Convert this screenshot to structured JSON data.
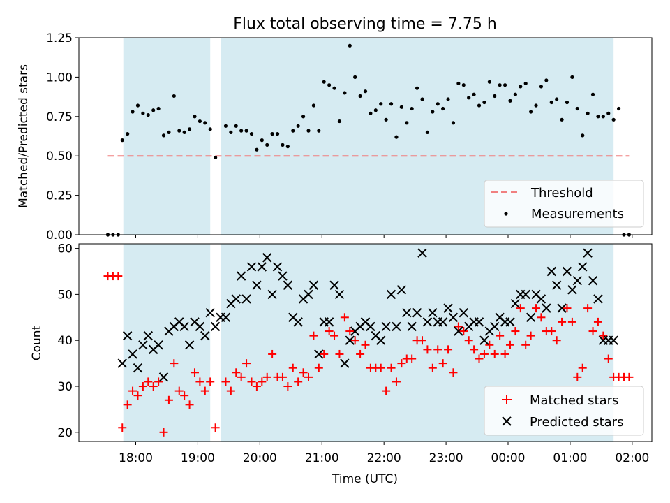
{
  "chart_data": [
    {
      "type": "scatter",
      "title": "Flux total observing time = 7.75 h",
      "xlabel": "",
      "ylabel": "Matched/Predicted stars",
      "ylim": [
        0,
        1.25
      ],
      "yticks": [
        "0.00",
        "0.25",
        "0.50",
        "0.75",
        "1.00",
        "1.25"
      ],
      "threshold": 0.5,
      "shaded_intervals": [
        [
          "17:48",
          "19:12"
        ],
        [
          "19:22",
          "01:42"
        ]
      ],
      "legend": {
        "placement": "lower-right",
        "entries": [
          "Threshold",
          "Measurements"
        ]
      },
      "series": [
        {
          "name": "Measurements",
          "x": [
            "17:33",
            "17:38",
            "17:43",
            "17:47",
            "17:52",
            "17:57",
            "18:02",
            "18:07",
            "18:12",
            "18:17",
            "18:22",
            "18:27",
            "18:32",
            "18:37",
            "18:42",
            "18:47",
            "18:52",
            "18:57",
            "19:02",
            "19:07",
            "19:12",
            "19:17",
            "19:27",
            "19:32",
            "19:37",
            "19:42",
            "19:47",
            "19:52",
            "19:57",
            "20:02",
            "20:07",
            "20:12",
            "20:17",
            "20:22",
            "20:27",
            "20:32",
            "20:37",
            "20:42",
            "20:47",
            "20:52",
            "20:57",
            "21:02",
            "21:07",
            "21:12",
            "21:17",
            "21:22",
            "21:27",
            "21:32",
            "21:37",
            "21:42",
            "21:47",
            "21:52",
            "21:57",
            "22:02",
            "22:07",
            "22:12",
            "22:17",
            "22:22",
            "22:27",
            "22:32",
            "22:37",
            "22:42",
            "22:47",
            "22:52",
            "22:57",
            "23:02",
            "23:07",
            "23:12",
            "23:17",
            "23:22",
            "23:27",
            "23:32",
            "23:37",
            "23:42",
            "23:47",
            "23:52",
            "23:57",
            "00:02",
            "00:07",
            "00:12",
            "00:17",
            "00:22",
            "00:27",
            "00:32",
            "00:37",
            "00:42",
            "00:47",
            "00:52",
            "00:57",
            "01:02",
            "01:07",
            "01:12",
            "01:17",
            "01:22",
            "01:27",
            "01:32",
            "01:37",
            "01:42",
            "01:47",
            "01:52",
            "01:57"
          ],
          "y": [
            0,
            0,
            0,
            0.6,
            0.64,
            0.78,
            0.82,
            0.77,
            0.76,
            0.79,
            0.8,
            0.63,
            0.65,
            0.88,
            0.66,
            0.65,
            0.67,
            0.75,
            0.72,
            0.71,
            0.67,
            0.49,
            0.69,
            0.65,
            0.69,
            0.66,
            0.66,
            0.64,
            0.54,
            0.6,
            0.57,
            0.64,
            0.64,
            0.57,
            0.56,
            0.66,
            0.69,
            0.75,
            0.66,
            0.82,
            0.66,
            0.97,
            0.95,
            0.93,
            0.72,
            0.9,
            1.2,
            1.0,
            0.88,
            0.91,
            0.77,
            0.79,
            0.83,
            0.73,
            0.83,
            0.62,
            0.81,
            0.71,
            0.8,
            0.93,
            0.86,
            0.65,
            0.78,
            0.83,
            0.8,
            0.86,
            0.71,
            0.96,
            0.95,
            0.87,
            0.89,
            0.82,
            0.84,
            0.97,
            0.88,
            0.95,
            0.95,
            0.85,
            0.89,
            0.94,
            0.96,
            0.78,
            0.82,
            0.94,
            0.98,
            0.84,
            0.86,
            0.73,
            0.84,
            1.0,
            0.8,
            0.63,
            0.77,
            0.89,
            0.75,
            0.75,
            0.77,
            0.73,
            0.8,
            0,
            0
          ]
        }
      ]
    },
    {
      "type": "scatter",
      "title": "",
      "xlabel": "Time (UTC)",
      "ylabel": "Count",
      "ylim": [
        18,
        61
      ],
      "yticks": [
        "20",
        "30",
        "40",
        "50",
        "60"
      ],
      "xticks": [
        "18:00",
        "19:00",
        "20:00",
        "21:00",
        "22:00",
        "23:00",
        "00:00",
        "01:00",
        "02:00"
      ],
      "shaded_intervals": [
        [
          "17:48",
          "19:12"
        ],
        [
          "19:22",
          "01:42"
        ]
      ],
      "legend": {
        "placement": "lower-right",
        "entries": [
          "Matched stars",
          "Predicted stars"
        ]
      },
      "series": [
        {
          "name": "Matched stars",
          "x": [
            "17:33",
            "17:38",
            "17:43",
            "17:47",
            "17:52",
            "17:57",
            "18:02",
            "18:07",
            "18:12",
            "18:17",
            "18:22",
            "18:27",
            "18:32",
            "18:37",
            "18:42",
            "18:47",
            "18:52",
            "18:57",
            "19:02",
            "19:07",
            "19:12",
            "19:17",
            "19:27",
            "19:32",
            "19:37",
            "19:42",
            "19:47",
            "19:52",
            "19:57",
            "20:02",
            "20:07",
            "20:12",
            "20:17",
            "20:22",
            "20:27",
            "20:32",
            "20:37",
            "20:42",
            "20:47",
            "20:52",
            "20:57",
            "21:02",
            "21:07",
            "21:12",
            "21:17",
            "21:22",
            "21:27",
            "21:32",
            "21:37",
            "21:42",
            "21:47",
            "21:52",
            "21:57",
            "22:02",
            "22:07",
            "22:12",
            "22:17",
            "22:22",
            "22:27",
            "22:32",
            "22:37",
            "22:42",
            "22:47",
            "22:52",
            "22:57",
            "23:02",
            "23:07",
            "23:12",
            "23:17",
            "23:22",
            "23:27",
            "23:32",
            "23:37",
            "23:42",
            "23:47",
            "23:52",
            "23:57",
            "00:02",
            "00:07",
            "00:12",
            "00:17",
            "00:22",
            "00:27",
            "00:32",
            "00:37",
            "00:42",
            "00:47",
            "00:52",
            "00:57",
            "01:02",
            "01:07",
            "01:12",
            "01:17",
            "01:22",
            "01:27",
            "01:32",
            "01:37",
            "01:42",
            "01:47",
            "01:52",
            "01:57"
          ],
          "y": [
            54,
            54,
            54,
            21,
            26,
            29,
            28,
            30,
            31,
            30,
            31,
            20,
            27,
            35,
            29,
            28,
            26,
            33,
            31,
            29,
            31,
            21,
            31,
            29,
            33,
            32,
            35,
            31,
            30,
            31,
            32,
            37,
            32,
            32,
            30,
            34,
            31,
            33,
            32,
            41,
            34,
            37,
            42,
            41,
            37,
            45,
            42,
            40,
            37,
            39,
            34,
            34,
            34,
            29,
            34,
            31,
            35,
            36,
            36,
            40,
            40,
            38,
            34,
            38,
            35,
            38,
            33,
            43,
            42,
            40,
            38,
            36,
            37,
            39,
            37,
            41,
            37,
            39,
            42,
            47,
            39,
            41,
            47,
            45,
            42,
            42,
            40,
            44,
            47,
            44,
            32,
            34,
            47,
            42,
            44,
            41,
            36,
            32,
            32,
            32,
            32
          ]
        },
        {
          "name": "Predicted stars",
          "x": [
            "17:47",
            "17:52",
            "17:57",
            "18:02",
            "18:07",
            "18:12",
            "18:17",
            "18:22",
            "18:27",
            "18:32",
            "18:37",
            "18:42",
            "18:47",
            "18:52",
            "18:57",
            "19:02",
            "19:07",
            "19:12",
            "19:17",
            "19:22",
            "19:27",
            "19:32",
            "19:37",
            "19:42",
            "19:47",
            "19:52",
            "19:57",
            "20:02",
            "20:07",
            "20:12",
            "20:17",
            "20:22",
            "20:27",
            "20:32",
            "20:37",
            "20:42",
            "20:47",
            "20:52",
            "20:57",
            "21:02",
            "21:07",
            "21:12",
            "21:17",
            "21:22",
            "21:27",
            "21:32",
            "21:37",
            "21:42",
            "21:47",
            "21:52",
            "21:57",
            "22:02",
            "22:07",
            "22:12",
            "22:17",
            "22:22",
            "22:27",
            "22:32",
            "22:37",
            "22:42",
            "22:47",
            "22:52",
            "22:57",
            "23:02",
            "23:07",
            "23:12",
            "23:17",
            "23:22",
            "23:27",
            "23:32",
            "23:37",
            "23:42",
            "23:47",
            "23:52",
            "23:57",
            "00:02",
            "00:07",
            "00:12",
            "00:17",
            "00:22",
            "00:27",
            "00:32",
            "00:37",
            "00:42",
            "00:47",
            "00:52",
            "00:57",
            "01:02",
            "01:07",
            "01:12",
            "01:17",
            "01:22",
            "01:27",
            "01:32",
            "01:37",
            "01:42"
          ],
          "y": [
            35,
            41,
            37,
            34,
            39,
            41,
            38,
            39,
            32,
            42,
            43,
            44,
            43,
            39,
            44,
            43,
            41,
            46,
            43,
            45,
            45,
            48,
            49,
            54,
            49,
            56,
            52,
            56,
            58,
            50,
            56,
            54,
            52,
            45,
            44,
            49,
            50,
            52,
            37,
            44,
            44,
            52,
            50,
            35,
            40,
            42,
            43,
            44,
            43,
            41,
            40,
            43,
            50,
            43,
            51,
            46,
            43,
            46,
            59,
            44,
            46,
            44,
            44,
            47,
            45,
            42,
            46,
            43,
            44,
            44,
            40,
            42,
            43,
            45,
            44,
            44,
            48,
            50,
            50,
            45,
            50,
            49,
            47,
            55,
            52,
            47,
            55,
            51,
            53,
            56,
            59,
            53,
            49,
            40,
            40,
            40
          ]
        }
      ]
    }
  ]
}
